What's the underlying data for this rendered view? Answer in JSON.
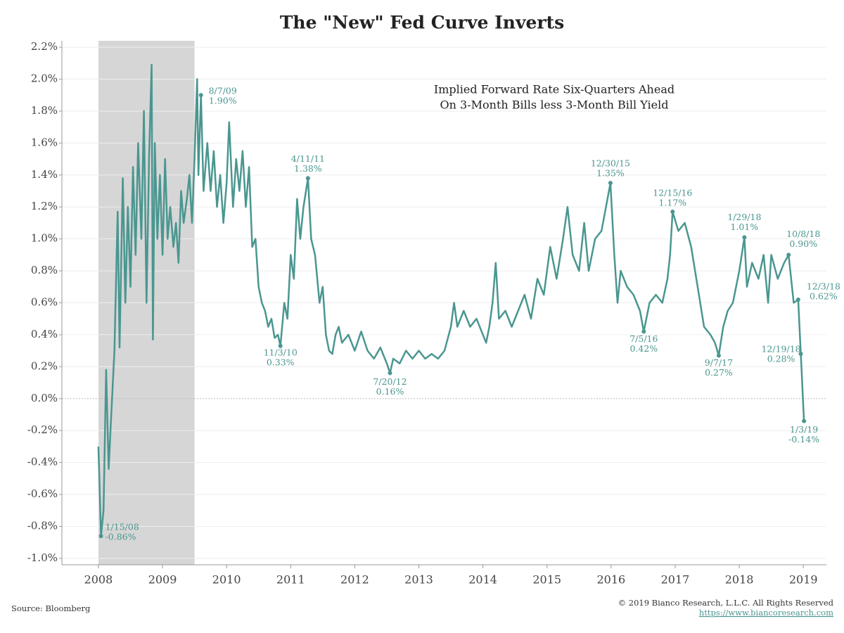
{
  "chart_data": {
    "type": "line",
    "title": "The \"New\" Fed Curve Inverts",
    "subtitle": [
      "Implied Forward Rate Six-Quarters Ahead",
      "On 3-Month Bills less 3-Month Bill Yield"
    ],
    "source": "Source: Bloomberg",
    "copyright": "© 2019 Bianco Research, L.L.C. All Rights Reserved",
    "url": "https://www.biancoresearch.com",
    "color": "#4a9690",
    "shade_color": "#d6d6d6",
    "shade": [
      2008.0,
      2009.5
    ],
    "xlim": [
      2007.43,
      2019.36
    ],
    "ylim": [
      -1.04,
      2.24
    ],
    "xticks": [
      2008,
      2009,
      2010,
      2011,
      2012,
      2013,
      2014,
      2015,
      2016,
      2017,
      2018,
      2019
    ],
    "yticks": [
      {
        "value": 2.2,
        "label": "2.2%"
      },
      {
        "value": 2.0,
        "label": "2.0%"
      },
      {
        "value": 1.8,
        "label": "1.8%"
      },
      {
        "value": 1.6,
        "label": "1.6%"
      },
      {
        "value": 1.4,
        "label": "1.4%"
      },
      {
        "value": 1.2,
        "label": "1.2%"
      },
      {
        "value": 1.0,
        "label": "1.0%"
      },
      {
        "value": 0.8,
        "label": "0.8%"
      },
      {
        "value": 0.6,
        "label": "0.6%"
      },
      {
        "value": 0.4,
        "label": "0.4%"
      },
      {
        "value": 0.2,
        "label": "0.2%"
      },
      {
        "value": 0,
        "label": "0.0%"
      },
      {
        "value": -0.2,
        "label": "-0.2%"
      },
      {
        "value": -0.4,
        "label": "-0.4%"
      },
      {
        "value": -0.6,
        "label": "-0.6%"
      },
      {
        "value": -0.8,
        "label": "-0.8%"
      },
      {
        "value": -1.0,
        "label": "-1.0%"
      }
    ],
    "grid": true,
    "x": [
      2008.0,
      2008.04,
      2008.08,
      2008.12,
      2008.16,
      2008.2,
      2008.25,
      2008.3,
      2008.33,
      2008.38,
      2008.42,
      2008.46,
      2008.5,
      2008.54,
      2008.58,
      2008.62,
      2008.67,
      2008.71,
      2008.75,
      2008.79,
      2008.83,
      2008.85,
      2008.88,
      2008.92,
      2008.96,
      2009.0,
      2009.04,
      2009.08,
      2009.12,
      2009.17,
      2009.21,
      2009.25,
      2009.29,
      2009.33,
      2009.38,
      2009.42,
      2009.46,
      2009.5,
      2009.54,
      2009.56,
      2009.6,
      2009.64,
      2009.7,
      2009.75,
      2009.8,
      2009.85,
      2009.9,
      2009.95,
      2010.0,
      2010.04,
      2010.1,
      2010.15,
      2010.2,
      2010.25,
      2010.3,
      2010.35,
      2010.4,
      2010.45,
      2010.5,
      2010.55,
      2010.6,
      2010.65,
      2010.7,
      2010.75,
      2010.8,
      2010.84,
      2010.9,
      2010.95,
      2011.0,
      2011.05,
      2011.1,
      2011.15,
      2011.2,
      2011.27,
      2011.32,
      2011.38,
      2011.45,
      2011.5,
      2011.55,
      2011.6,
      2011.65,
      2011.7,
      2011.75,
      2011.8,
      2011.9,
      2012.0,
      2012.1,
      2012.2,
      2012.3,
      2012.4,
      2012.5,
      2012.55,
      2012.6,
      2012.7,
      2012.8,
      2012.9,
      2013.0,
      2013.1,
      2013.2,
      2013.3,
      2013.4,
      2013.5,
      2013.55,
      2013.6,
      2013.7,
      2013.8,
      2013.9,
      2014.0,
      2014.05,
      2014.1,
      2014.15,
      2014.2,
      2014.25,
      2014.35,
      2014.45,
      2014.55,
      2014.65,
      2014.75,
      2014.85,
      2014.95,
      2015.05,
      2015.15,
      2015.25,
      2015.32,
      2015.4,
      2015.5,
      2015.58,
      2015.65,
      2015.75,
      2015.85,
      2015.92,
      2015.99,
      2016.05,
      2016.1,
      2016.15,
      2016.25,
      2016.35,
      2016.45,
      2016.51,
      2016.6,
      2016.7,
      2016.8,
      2016.88,
      2016.92,
      2016.96,
      2017.05,
      2017.15,
      2017.25,
      2017.35,
      2017.45,
      2017.55,
      2017.62,
      2017.68,
      2017.75,
      2017.82,
      2017.9,
      2018.0,
      2018.08,
      2018.12,
      2018.2,
      2018.3,
      2018.38,
      2018.45,
      2018.5,
      2018.6,
      2018.7,
      2018.77,
      2018.85,
      2018.92,
      2018.94,
      2018.96,
      2019.01
    ],
    "values": [
      -0.3,
      -0.86,
      -0.7,
      0.18,
      -0.44,
      -0.1,
      0.3,
      1.17,
      0.32,
      1.38,
      0.6,
      1.2,
      0.7,
      1.45,
      0.9,
      1.6,
      1.0,
      1.8,
      0.6,
      1.5,
      2.09,
      0.37,
      1.6,
      1.0,
      1.4,
      0.9,
      1.5,
      1.0,
      1.2,
      0.95,
      1.1,
      0.85,
      1.3,
      1.1,
      1.25,
      1.4,
      1.1,
      1.5,
      2.0,
      1.4,
      1.9,
      1.3,
      1.6,
      1.3,
      1.55,
      1.2,
      1.4,
      1.1,
      1.35,
      1.73,
      1.2,
      1.5,
      1.3,
      1.55,
      1.2,
      1.45,
      0.95,
      1.0,
      0.7,
      0.6,
      0.55,
      0.45,
      0.5,
      0.38,
      0.4,
      0.33,
      0.6,
      0.5,
      0.9,
      0.75,
      1.25,
      1.0,
      1.2,
      1.38,
      1.0,
      0.9,
      0.6,
      0.7,
      0.4,
      0.3,
      0.28,
      0.4,
      0.45,
      0.35,
      0.4,
      0.3,
      0.42,
      0.3,
      0.25,
      0.32,
      0.22,
      0.16,
      0.25,
      0.22,
      0.3,
      0.25,
      0.3,
      0.25,
      0.28,
      0.25,
      0.3,
      0.45,
      0.6,
      0.45,
      0.55,
      0.45,
      0.5,
      0.4,
      0.35,
      0.45,
      0.6,
      0.85,
      0.5,
      0.55,
      0.45,
      0.55,
      0.65,
      0.5,
      0.75,
      0.65,
      0.95,
      0.75,
      1.0,
      1.2,
      0.9,
      0.8,
      1.1,
      0.8,
      1.0,
      1.05,
      1.2,
      1.35,
      0.9,
      0.6,
      0.8,
      0.7,
      0.65,
      0.55,
      0.42,
      0.6,
      0.65,
      0.6,
      0.75,
      0.9,
      1.17,
      1.05,
      1.1,
      0.95,
      0.7,
      0.45,
      0.4,
      0.35,
      0.27,
      0.45,
      0.55,
      0.6,
      0.8,
      1.01,
      0.7,
      0.85,
      0.75,
      0.9,
      0.6,
      0.9,
      0.75,
      0.85,
      0.9,
      0.6,
      0.62,
      0.45,
      0.28,
      -0.14
    ],
    "annotations": [
      {
        "x": 2008.04,
        "value": -0.86,
        "date": "1/15/08",
        "label": "-0.86%"
      },
      {
        "x": 2009.6,
        "value": 1.9,
        "date": "8/7/09",
        "label": "1.90%"
      },
      {
        "x": 2010.84,
        "value": 0.33,
        "date": "11/3/10",
        "label": "0.33%"
      },
      {
        "x": 2011.27,
        "value": 1.38,
        "date": "4/11/11",
        "label": "1.38%"
      },
      {
        "x": 2012.55,
        "value": 0.16,
        "date": "7/20/12",
        "label": "0.16%"
      },
      {
        "x": 2015.99,
        "value": 1.35,
        "date": "12/30/15",
        "label": "1.35%"
      },
      {
        "x": 2016.51,
        "value": 0.42,
        "date": "7/5/16",
        "label": "0.42%"
      },
      {
        "x": 2016.96,
        "value": 1.17,
        "date": "12/15/16",
        "label": "1.17%"
      },
      {
        "x": 2017.68,
        "value": 0.27,
        "date": "9/7/17",
        "label": "0.27%"
      },
      {
        "x": 2018.08,
        "value": 1.01,
        "date": "1/29/18",
        "label": "1.01%"
      },
      {
        "x": 2018.77,
        "value": 0.9,
        "date": "10/8/18",
        "label": "0.90%"
      },
      {
        "x": 2018.92,
        "value": 0.62,
        "date": "12/3/18",
        "label": "0.62%"
      },
      {
        "x": 2018.96,
        "value": 0.28,
        "date": "12/19/18",
        "label": "0.28%"
      },
      {
        "x": 2019.01,
        "value": -0.14,
        "date": "1/3/19",
        "label": "-0.14%"
      }
    ]
  }
}
